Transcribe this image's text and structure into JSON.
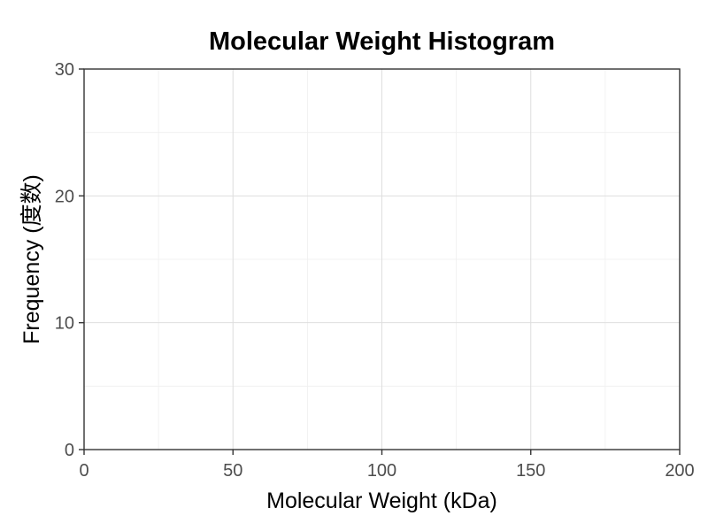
{
  "chart_data": {
    "type": "bar",
    "title": "Molecular Weight Histogram",
    "xlabel": "Molecular Weight (kDa)",
    "ylabel": "Frequency (度数)",
    "xlim": [
      0,
      200
    ],
    "ylim": [
      0,
      30
    ],
    "x_ticks": [
      0,
      50,
      100,
      150,
      200
    ],
    "y_ticks": [
      0,
      10,
      20,
      30
    ],
    "x_tick_labels": [
      "0",
      "50",
      "100",
      "150",
      "200"
    ],
    "y_tick_labels": [
      "0",
      "10",
      "20",
      "30"
    ],
    "grid": true,
    "bins": [],
    "values": []
  }
}
